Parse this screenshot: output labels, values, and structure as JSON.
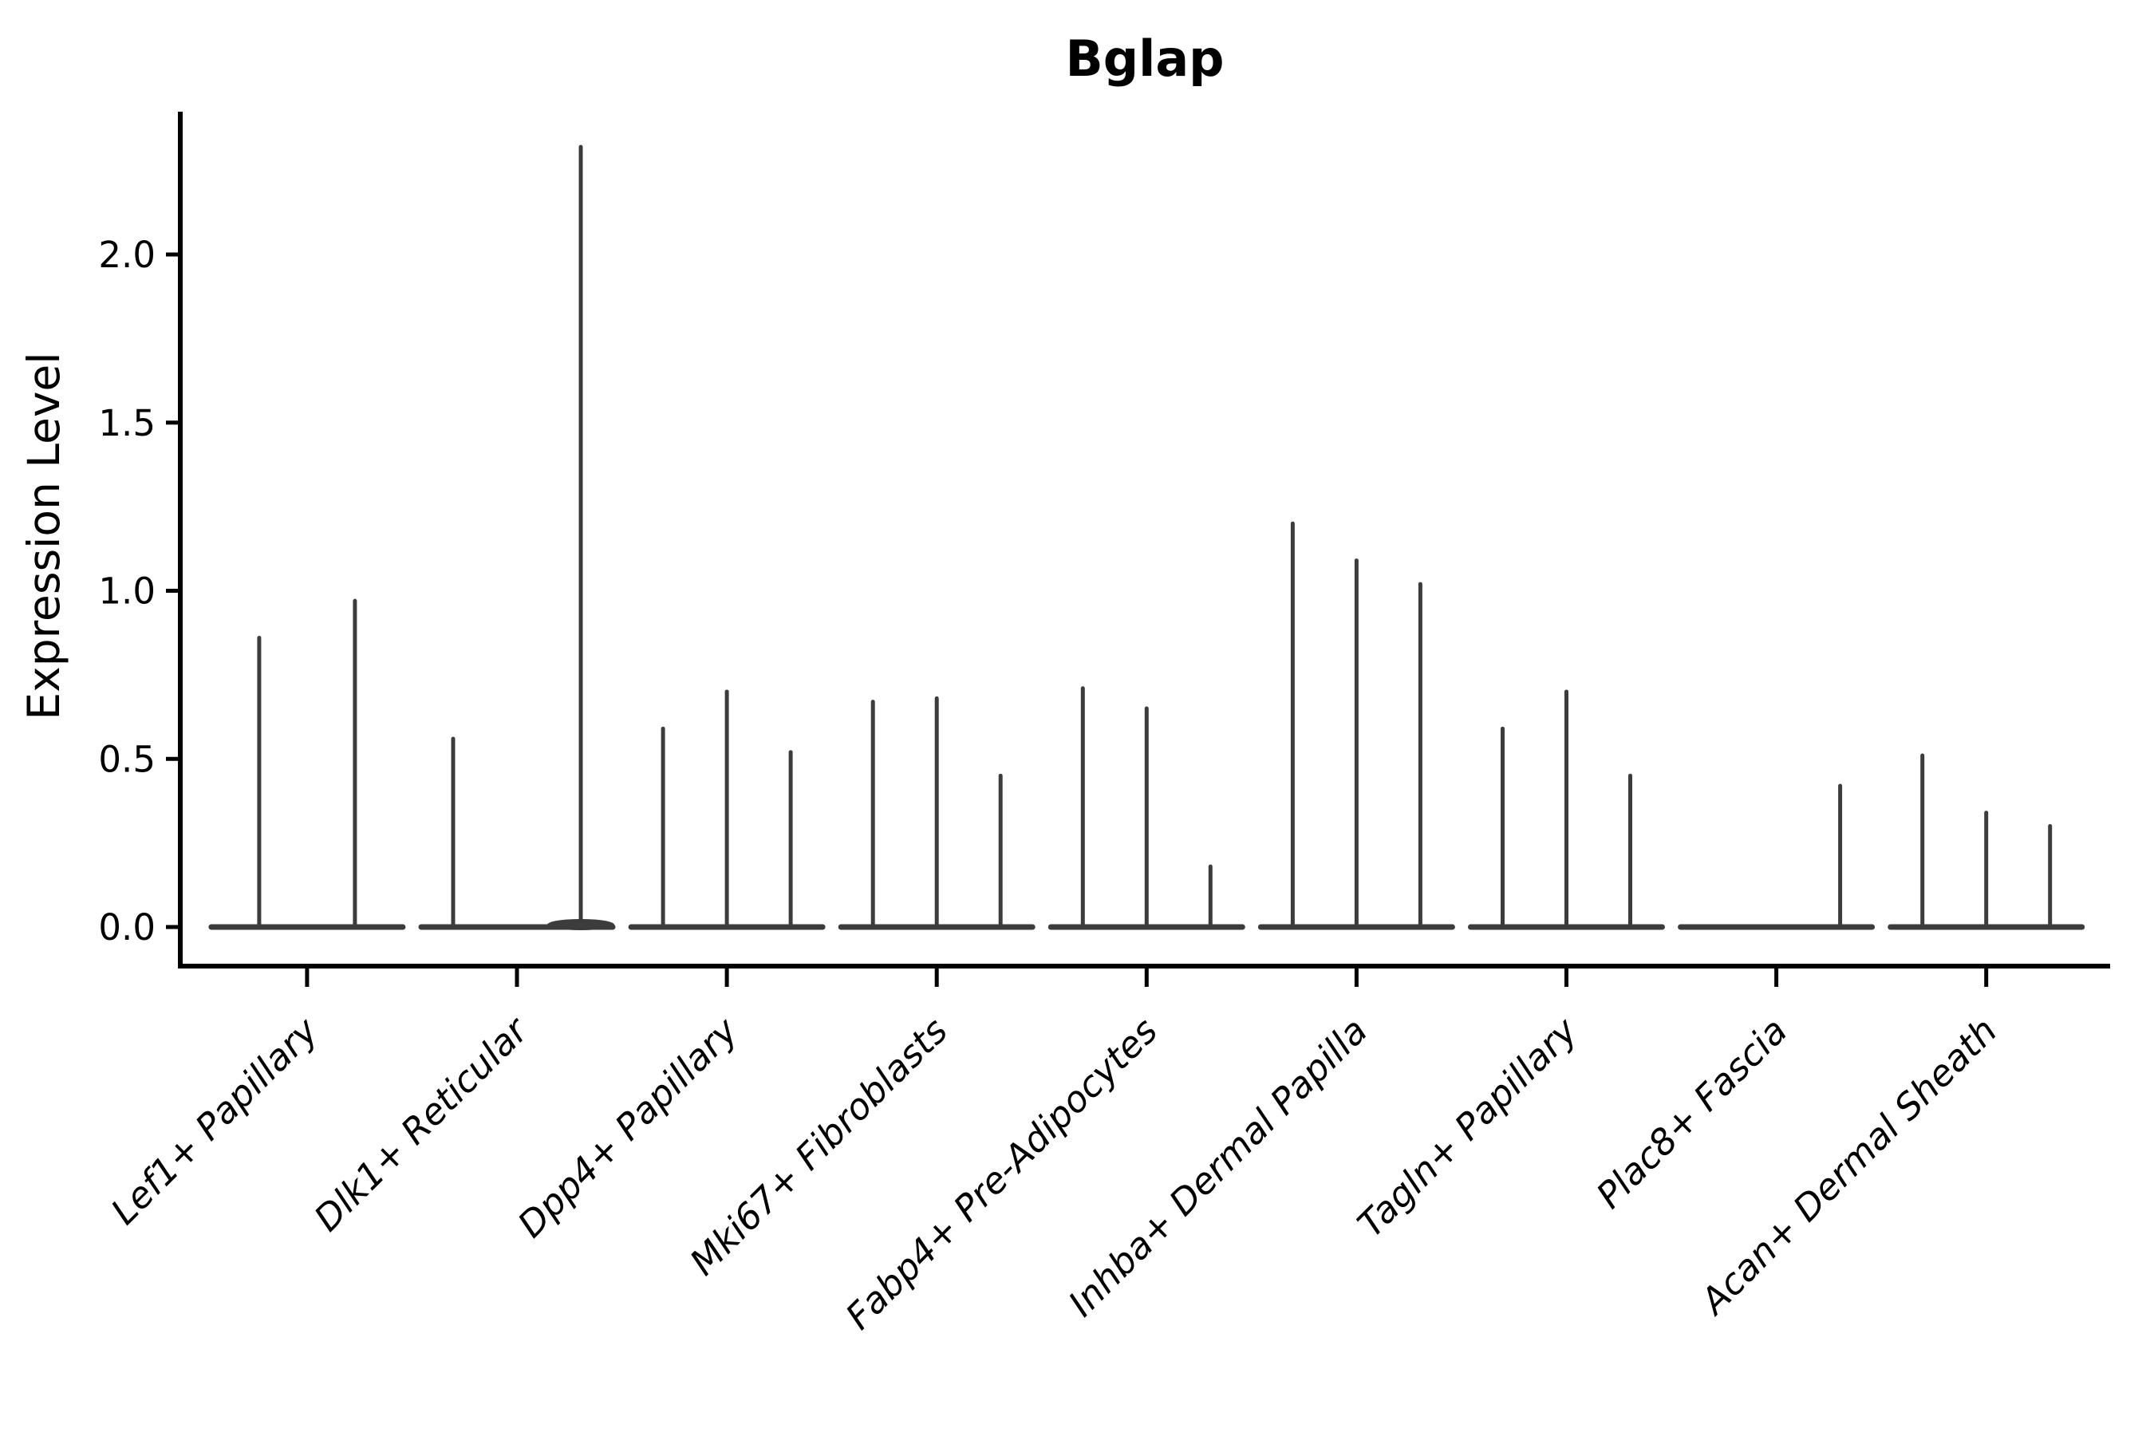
{
  "chart_data": {
    "type": "violin",
    "title": "Bglap",
    "ylabel": "Expression Level",
    "xlabel": "",
    "ylim": [
      -0.12,
      2.42
    ],
    "yticks": [
      0.0,
      0.5,
      1.0,
      1.5,
      2.0
    ],
    "ytick_labels": [
      "0.0",
      "0.5",
      "1.0",
      "1.5",
      "2.0"
    ],
    "grid": false,
    "legend": "none",
    "categories": [
      "Lef1+ Papillary",
      "Dlk1+ Reticular",
      "Dpp4+ Papillary",
      "Mki67+ Fibroblasts",
      "Fabp4+ Pre-Adipocytes",
      "Inhba+ Dermal Papilla",
      "Tagln+ Papillary",
      "Plac8+ Fascia",
      "Acan+ Dermal Sheath"
    ],
    "series": [
      {
        "category": "Lef1+ Papillary",
        "violin_spike_maxima": [
          0.86,
          0.97
        ]
      },
      {
        "category": "Dlk1+ Reticular",
        "violin_spike_maxima": [
          0.56,
          0,
          2.32
        ]
      },
      {
        "category": "Dpp4+ Papillary",
        "violin_spike_maxima": [
          0.59,
          0.7,
          0.52
        ]
      },
      {
        "category": "Mki67+ Fibroblasts",
        "violin_spike_maxima": [
          0.67,
          0.68,
          0.45
        ]
      },
      {
        "category": "Fabp4+ Pre-Adipocytes",
        "violin_spike_maxima": [
          0.71,
          0.65,
          0.18
        ]
      },
      {
        "category": "Inhba+ Dermal Papilla",
        "violin_spike_maxima": [
          1.2,
          1.09,
          1.02
        ]
      },
      {
        "category": "Tagln+ Papillary",
        "violin_spike_maxima": [
          0.59,
          0.7,
          0.45
        ]
      },
      {
        "category": "Plac8+ Fascia",
        "violin_spike_maxima": [
          0,
          0,
          0.42
        ]
      },
      {
        "category": "Acan+ Dermal Sheath",
        "violin_spike_maxima": [
          0.51,
          0.34,
          0.3
        ]
      }
    ],
    "colors": {
      "violin": "#3c3c3c",
      "axis": "#000000",
      "text": "#000000",
      "background": "#ffffff"
    }
  }
}
